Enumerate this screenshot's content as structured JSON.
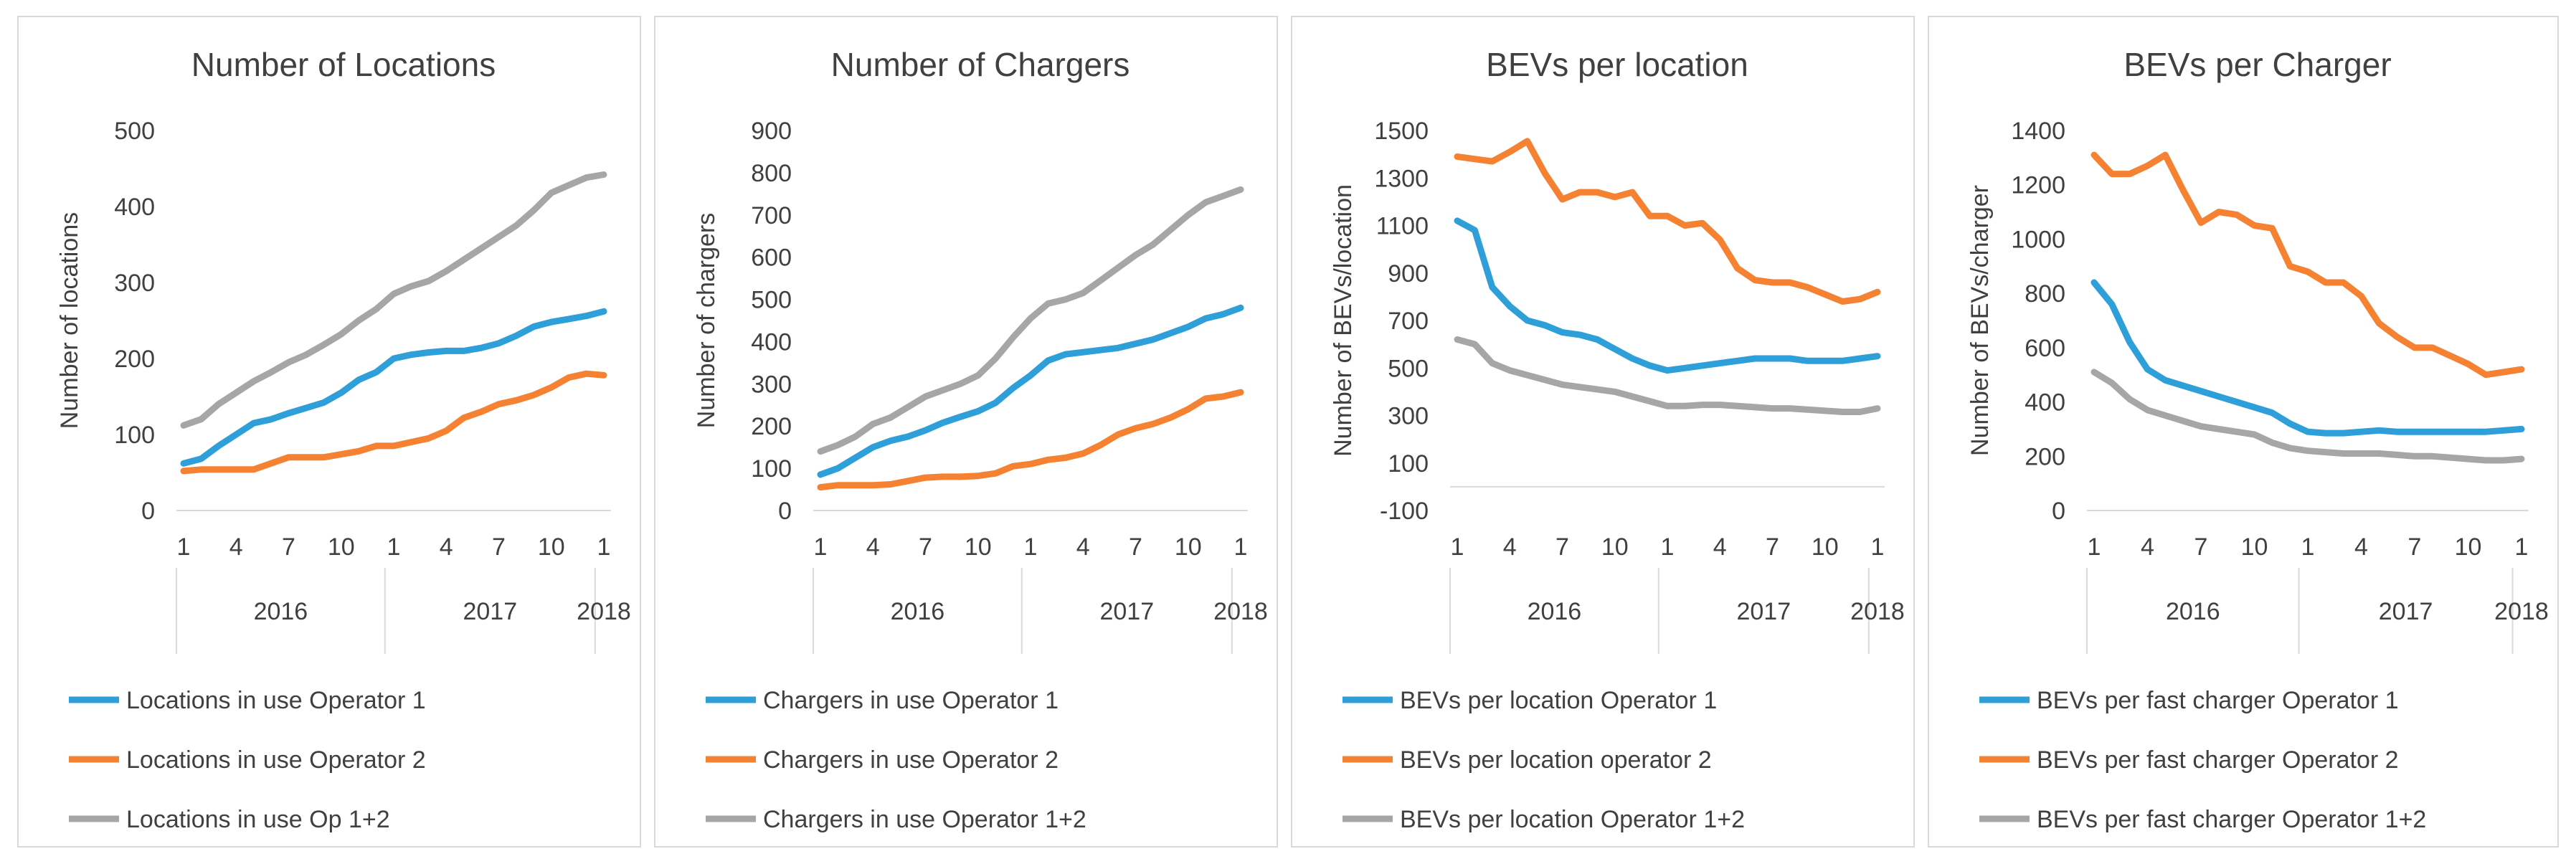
{
  "colors": {
    "op1": "#2e9fd8",
    "op2": "#f58232",
    "op12": "#a6a6a6"
  },
  "chart_data": [
    {
      "type": "line",
      "title": "Number of Locations",
      "ylabel": "Number of locations",
      "ylim": [
        0,
        500
      ],
      "yticks": [
        0,
        100,
        200,
        300,
        400,
        500
      ],
      "x_month_labels": [
        "1",
        "4",
        "7",
        "10",
        "1",
        "4",
        "7",
        "10",
        "1"
      ],
      "x_year_labels": [
        "2016",
        "2017",
        "2018"
      ],
      "series": [
        {
          "name": "Locations in use Operator 1",
          "color_key": "op1",
          "values": [
            62,
            68,
            85,
            100,
            115,
            120,
            128,
            135,
            142,
            155,
            172,
            182,
            200,
            205,
            208,
            210,
            210,
            214,
            220,
            230,
            242,
            248,
            252,
            256,
            262
          ]
        },
        {
          "name": "Locations in use Operator 2",
          "color_key": "op2",
          "values": [
            52,
            54,
            54,
            54,
            54,
            62,
            70,
            70,
            70,
            74,
            78,
            85,
            85,
            90,
            95,
            105,
            122,
            130,
            140,
            145,
            152,
            162,
            175,
            180,
            178
          ]
        },
        {
          "name": "Locations in use Op 1+2",
          "color_key": "op12",
          "values": [
            112,
            120,
            140,
            155,
            170,
            182,
            195,
            205,
            218,
            232,
            250,
            265,
            285,
            295,
            302,
            315,
            330,
            345,
            360,
            375,
            395,
            418,
            428,
            438,
            442
          ]
        }
      ]
    },
    {
      "type": "line",
      "title": "Number of Chargers",
      "ylabel": "Number of chargers",
      "ylim": [
        0,
        900
      ],
      "yticks": [
        0,
        100,
        200,
        300,
        400,
        500,
        600,
        700,
        800,
        900
      ],
      "x_month_labels": [
        "1",
        "4",
        "7",
        "10",
        "1",
        "4",
        "7",
        "10",
        "1"
      ],
      "x_year_labels": [
        "2016",
        "2017",
        "2018"
      ],
      "series": [
        {
          "name": "Chargers in use Operator 1",
          "color_key": "op1",
          "values": [
            85,
            100,
            125,
            150,
            165,
            175,
            190,
            208,
            222,
            235,
            255,
            290,
            320,
            355,
            370,
            375,
            380,
            385,
            395,
            405,
            420,
            435,
            455,
            465,
            480
          ]
        },
        {
          "name": "Chargers in use Operator 2",
          "color_key": "op2",
          "values": [
            55,
            60,
            60,
            60,
            62,
            70,
            78,
            80,
            80,
            82,
            88,
            105,
            110,
            120,
            125,
            135,
            155,
            180,
            195,
            205,
            220,
            240,
            265,
            270,
            280
          ]
        },
        {
          "name": "Chargers in use Operator 1+2",
          "color_key": "op12",
          "values": [
            140,
            155,
            175,
            205,
            220,
            245,
            270,
            285,
            300,
            320,
            360,
            410,
            455,
            490,
            500,
            515,
            545,
            575,
            605,
            630,
            665,
            700,
            730,
            745,
            760
          ]
        }
      ]
    },
    {
      "type": "line",
      "title": "BEVs per location",
      "ylabel": "Number of BEVs/location",
      "ylim": [
        -100,
        1500
      ],
      "yticks": [
        -100,
        100,
        300,
        500,
        700,
        900,
        1100,
        1300,
        1500
      ],
      "x_month_labels": [
        "1",
        "4",
        "7",
        "10",
        "1",
        "4",
        "7",
        "10",
        "1"
      ],
      "x_year_labels": [
        "2016",
        "2017",
        "2018"
      ],
      "series": [
        {
          "name": "BEVs per location Operator 1",
          "color_key": "op1",
          "values": [
            1120,
            1080,
            840,
            760,
            700,
            680,
            650,
            640,
            620,
            580,
            540,
            510,
            490,
            500,
            510,
            520,
            530,
            540,
            540,
            540,
            530,
            530,
            530,
            540,
            550
          ]
        },
        {
          "name": "BEVs per location operator 2",
          "color_key": "op2",
          "values": [
            1390,
            1380,
            1370,
            1410,
            1455,
            1320,
            1210,
            1240,
            1240,
            1220,
            1240,
            1140,
            1140,
            1100,
            1110,
            1040,
            920,
            870,
            860,
            860,
            840,
            810,
            780,
            790,
            820
          ]
        },
        {
          "name": "BEVs per location Operator 1+2",
          "color_key": "op12",
          "values": [
            620,
            600,
            520,
            490,
            470,
            450,
            430,
            420,
            410,
            400,
            380,
            360,
            340,
            340,
            345,
            345,
            340,
            335,
            330,
            330,
            325,
            320,
            315,
            315,
            330
          ]
        }
      ]
    },
    {
      "type": "line",
      "title": "BEVs per Charger",
      "ylabel": "Number of BEVs/charger",
      "ylim": [
        0,
        1400
      ],
      "yticks": [
        0,
        200,
        400,
        600,
        800,
        1000,
        1200,
        1400
      ],
      "x_month_labels": [
        "1",
        "4",
        "7",
        "10",
        "1",
        "4",
        "7",
        "10",
        "1"
      ],
      "x_year_labels": [
        "2016",
        "2017",
        "2018"
      ],
      "series": [
        {
          "name": "BEVs per fast charger Operator 1",
          "color_key": "op1",
          "values": [
            840,
            760,
            620,
            520,
            480,
            460,
            440,
            420,
            400,
            380,
            360,
            320,
            290,
            285,
            285,
            290,
            295,
            290,
            290,
            290,
            290,
            290,
            290,
            295,
            300
          ]
        },
        {
          "name": "BEVs per fast charger Operator 2",
          "color_key": "op2",
          "values": [
            1310,
            1240,
            1240,
            1270,
            1310,
            1180,
            1060,
            1100,
            1090,
            1050,
            1040,
            900,
            880,
            840,
            840,
            790,
            690,
            640,
            600,
            600,
            570,
            540,
            500,
            510,
            520
          ]
        },
        {
          "name": "BEVs per fast charger Operator 1+2",
          "color_key": "op12",
          "values": [
            510,
            470,
            410,
            370,
            350,
            330,
            310,
            300,
            290,
            280,
            250,
            230,
            220,
            215,
            210,
            210,
            210,
            205,
            200,
            200,
            195,
            190,
            185,
            185,
            190
          ]
        }
      ]
    }
  ]
}
